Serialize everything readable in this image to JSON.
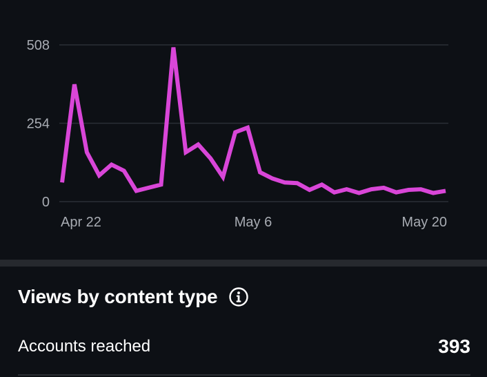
{
  "chart_data": {
    "type": "line",
    "y_ticks": [
      "508",
      "254",
      "0"
    ],
    "x_ticks": [
      "Apr 22",
      "May 6",
      "May 20"
    ],
    "ylim": [
      0,
      508
    ],
    "grid": true,
    "series": [
      {
        "color": "#d946d8",
        "x": [
          "Apr 20",
          "Apr 21",
          "Apr 22",
          "Apr 23",
          "Apr 24",
          "Apr 25",
          "Apr 26",
          "Apr 27",
          "Apr 28",
          "Apr 29",
          "Apr 30",
          "May 1",
          "May 2",
          "May 3",
          "May 4",
          "May 5",
          "May 6",
          "May 7",
          "May 8",
          "May 9",
          "May 10",
          "May 11",
          "May 12",
          "May 13",
          "May 14",
          "May 15",
          "May 16",
          "May 17",
          "May 18",
          "May 19",
          "May 20",
          "May 21"
        ],
        "values": [
          62,
          380,
          160,
          85,
          120,
          100,
          35,
          45,
          55,
          500,
          160,
          185,
          140,
          80,
          225,
          240,
          95,
          75,
          62,
          60,
          38,
          55,
          30,
          40,
          28,
          40,
          45,
          30,
          38,
          40,
          28,
          35
        ]
      }
    ]
  },
  "section": {
    "title": "Views by content type",
    "info_icon": "info-icon",
    "metric_label": "Accounts reached",
    "metric_value": "393"
  }
}
